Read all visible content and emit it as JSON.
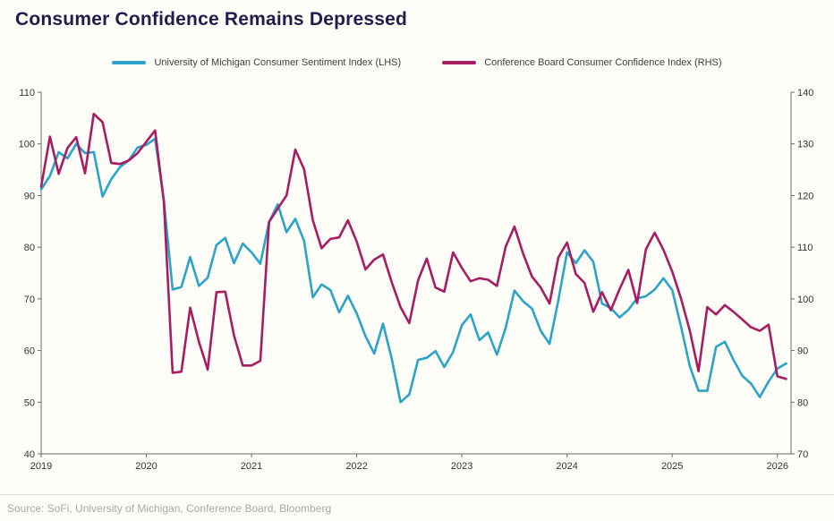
{
  "title": "Consumer Confidence Remains Depressed",
  "source": "Source: SoFi, University of Michigan, Conference Board, Bloomberg",
  "colors": {
    "umich": "#2AA5C9",
    "conference_board": "#A81D61",
    "title_text": "#211C4E",
    "axis_line": "#6B6B6B",
    "axis_text": "#333333",
    "source_text": "#A8A8A8",
    "background": "#FFFDF7"
  },
  "legend": [
    {
      "label": "University of Michigan Consumer Sentiment Index (LHS)",
      "color_key": "umich"
    },
    {
      "label": "Conference Board Consumer Confidence Index (RHS)",
      "color_key": "conference_board"
    }
  ],
  "chart_data": {
    "type": "line",
    "title": "Consumer Confidence Remains Depressed",
    "x_monthly_from": "2019-01",
    "x_tick_labels": [
      "2019",
      "2020",
      "2021",
      "2022",
      "2023",
      "2024",
      "2025",
      "2026"
    ],
    "x_domain_years": [
      2019,
      2026.13
    ],
    "grid": false,
    "legend_position": "top-center",
    "left_axis": {
      "min": 40,
      "max": 110,
      "ticks": [
        110,
        100,
        90,
        80,
        70,
        60,
        50,
        40
      ]
    },
    "right_axis": {
      "min": 70,
      "max": 140,
      "ticks": [
        140,
        130,
        120,
        110,
        100,
        90,
        80,
        70
      ]
    },
    "series": [
      {
        "name": "University of Michigan Consumer Sentiment Index (LHS)",
        "axis": "left",
        "color_key": "umich",
        "values": [
          91.2,
          93.8,
          98.4,
          97.2,
          100.0,
          98.2,
          98.4,
          89.8,
          93.2,
          95.5,
          96.8,
          99.3,
          99.8,
          101.0,
          89.1,
          71.8,
          72.3,
          78.1,
          72.5,
          74.1,
          80.4,
          81.8,
          76.9,
          80.7,
          79.0,
          76.8,
          84.9,
          88.3,
          82.9,
          85.5,
          81.2,
          70.3,
          72.8,
          71.7,
          67.4,
          70.6,
          67.2,
          62.8,
          59.4,
          65.2,
          58.4,
          50.0,
          51.5,
          58.2,
          58.6,
          59.9,
          56.8,
          59.7,
          64.9,
          67.0,
          62.0,
          63.5,
          59.2,
          64.4,
          71.6,
          69.5,
          68.1,
          63.8,
          61.3,
          69.7,
          79.0,
          76.9,
          79.4,
          77.2,
          69.1,
          68.2,
          66.4,
          67.9,
          70.1,
          70.5,
          71.8,
          74.0,
          71.7,
          64.7,
          57.0,
          52.2,
          52.2,
          60.7,
          61.7,
          58.2,
          55.1,
          53.6,
          51.0,
          54.0,
          56.5,
          57.5
        ]
      },
      {
        "name": "Conference Board Consumer Confidence Index (RHS)",
        "axis": "right",
        "color_key": "conference_board",
        "values": [
          121.7,
          131.4,
          124.2,
          129.2,
          131.3,
          124.3,
          135.8,
          134.2,
          126.3,
          126.1,
          126.8,
          128.2,
          130.4,
          132.6,
          118.8,
          85.7,
          85.9,
          98.3,
          91.7,
          86.3,
          101.3,
          101.4,
          92.9,
          87.1,
          87.1,
          88.0,
          114.9,
          117.5,
          120.0,
          128.9,
          125.1,
          115.2,
          109.8,
          111.6,
          111.9,
          115.2,
          111.1,
          105.7,
          107.6,
          108.6,
          103.2,
          98.4,
          95.3,
          103.6,
          107.8,
          102.2,
          101.4,
          109.0,
          106.0,
          103.4,
          104.0,
          103.7,
          102.5,
          110.1,
          114.0,
          108.7,
          104.3,
          102.2,
          99.1,
          108.0,
          110.9,
          104.8,
          103.1,
          97.5,
          101.3,
          97.8,
          101.9,
          105.6,
          99.2,
          109.6,
          112.8,
          109.5,
          105.3,
          100.1,
          93.9,
          86.0,
          98.4,
          97.0,
          98.8,
          97.5,
          96.0,
          94.5,
          93.8,
          95.0,
          85.0,
          84.5
        ]
      }
    ]
  }
}
